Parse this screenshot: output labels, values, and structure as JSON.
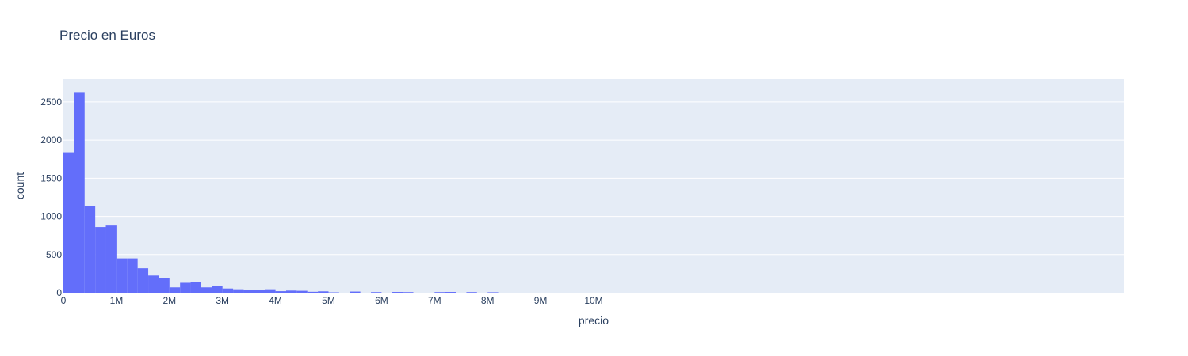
{
  "chart_data": {
    "type": "bar",
    "title": "Precio en Euros",
    "xlabel": "precio",
    "ylabel": "count",
    "xlim": [
      0,
      20000000
    ],
    "ylim": [
      0,
      2800
    ],
    "bin_width": 200000,
    "x_ticks": [
      {
        "value": 0,
        "label": "0"
      },
      {
        "value": 1000000,
        "label": "1M"
      },
      {
        "value": 2000000,
        "label": "2M"
      },
      {
        "value": 3000000,
        "label": "3M"
      },
      {
        "value": 4000000,
        "label": "4M"
      },
      {
        "value": 5000000,
        "label": "5M"
      },
      {
        "value": 6000000,
        "label": "6M"
      },
      {
        "value": 7000000,
        "label": "7M"
      },
      {
        "value": 8000000,
        "label": "8M"
      },
      {
        "value": 9000000,
        "label": "9M"
      },
      {
        "value": 10000000,
        "label": "10M"
      }
    ],
    "y_ticks": [
      0,
      500,
      1000,
      1500,
      2000,
      2500
    ],
    "bins_start": [
      0,
      200000,
      400000,
      600000,
      800000,
      1000000,
      1200000,
      1400000,
      1600000,
      1800000,
      2000000,
      2200000,
      2400000,
      2600000,
      2800000,
      3000000,
      3200000,
      3400000,
      3600000,
      3800000,
      4000000,
      4200000,
      4400000,
      4600000,
      4800000,
      5000000,
      5200000,
      5400000,
      5600000,
      5800000,
      6000000,
      6200000,
      6400000,
      6600000,
      6800000,
      7000000,
      7200000,
      7400000,
      7600000,
      7800000,
      8000000
    ],
    "values": [
      1840,
      2630,
      1140,
      860,
      880,
      450,
      450,
      320,
      225,
      195,
      70,
      130,
      140,
      70,
      90,
      55,
      45,
      35,
      35,
      45,
      20,
      28,
      25,
      12,
      18,
      5,
      0,
      15,
      0,
      8,
      0,
      10,
      8,
      0,
      0,
      8,
      10,
      0,
      8,
      0,
      6
    ],
    "grid": true,
    "legend": "none",
    "bar_color": "#636efa",
    "plot_bg": "#e5ecf6"
  }
}
